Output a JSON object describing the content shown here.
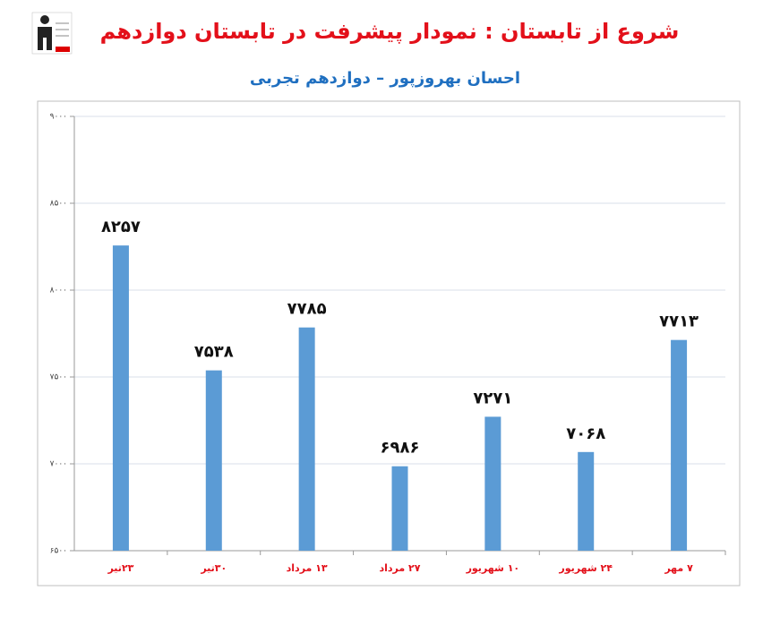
{
  "chart_data": {
    "type": "bar",
    "title": "شروع از تابستان : نمودار پیشرفت در تابستان دوازدهم",
    "subtitle": "احسان بهروزپور – دوازدهم تجربی",
    "categories": [
      "۲۳تیر",
      "۳۰تیر",
      "۱۳ مرداد",
      "۲۷ مرداد",
      "۱۰ شهریور",
      "۲۴ شهریور",
      "۷ مهر"
    ],
    "values": [
      8257,
      7538,
      7785,
      6986,
      7271,
      7068,
      7713
    ],
    "value_labels": [
      "۸۲۵۷",
      "۷۵۳۸",
      "۷۷۸۵",
      "۶۹۸۶",
      "۷۲۷۱",
      "۷۰۶۸",
      "۷۷۱۳"
    ],
    "color": "#5b9bd5",
    "ylim": [
      6500,
      9000
    ],
    "yticks": [
      {
        "value": 6500,
        "label": "۶۵۰۰"
      },
      {
        "value": 7000,
        "label": "۷۰۰۰"
      },
      {
        "value": 7500,
        "label": "۷۵۰۰"
      },
      {
        "value": 8000,
        "label": "۸۰۰۰"
      },
      {
        "value": 8500,
        "label": "۸۵۰۰"
      },
      {
        "value": 9000,
        "label": "۹۰۰۰"
      }
    ],
    "grid": true
  }
}
